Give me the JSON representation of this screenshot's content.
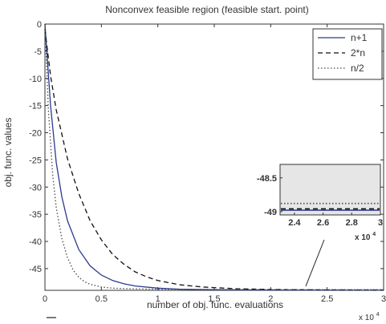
{
  "chart_data": {
    "type": "line",
    "title": "Nonconvex feasible region (feasible start. point)",
    "xlabel": "number of obj. func. evaluations",
    "ylabel": "obj. func. values",
    "xlim": [
      0,
      30000
    ],
    "ylim": [
      -49,
      0
    ],
    "x_multiplier_label": "x 10",
    "x_multiplier_exp": "4",
    "xticks": [
      0,
      0.5,
      1,
      1.5,
      2,
      2.5,
      3
    ],
    "xtick_labels": [
      "0",
      "0.5",
      "1",
      "1.5",
      "2",
      "2.5",
      "3"
    ],
    "yticks": [
      0,
      -5,
      -10,
      -15,
      -20,
      -25,
      -30,
      -35,
      -40,
      -45
    ],
    "ytick_labels": [
      "0",
      "-5",
      "-10",
      "-15",
      "-20",
      "-25",
      "-30",
      "-35",
      "-40",
      "-45"
    ],
    "grid": false,
    "legend_position": "top-right",
    "series": [
      {
        "name": "n+1",
        "color": "#2b3a8c",
        "dash": "solid",
        "x": [
          0,
          500,
          1000,
          1500,
          2000,
          3000,
          4000,
          5000,
          6000,
          7000,
          8000,
          10000,
          12000,
          15000,
          20000,
          25000,
          30000
        ],
        "y": [
          0,
          -15,
          -25.5,
          -31.8,
          -36.2,
          -41.5,
          -44.5,
          -46.2,
          -47.2,
          -47.8,
          -48.2,
          -48.6,
          -48.8,
          -48.9,
          -48.95,
          -48.97,
          -48.98
        ]
      },
      {
        "name": "2*n",
        "color": "#111111",
        "dash": "dashed",
        "x": [
          0,
          500,
          1000,
          2000,
          3000,
          4000,
          5000,
          6000,
          7000,
          8000,
          9000,
          10000,
          12000,
          14000,
          17000,
          20000,
          25000,
          30000
        ],
        "y": [
          -1,
          -9.5,
          -15.8,
          -24.8,
          -31.2,
          -36.2,
          -39.7,
          -42.4,
          -44.2,
          -45.6,
          -46.5,
          -47.2,
          -48.0,
          -48.4,
          -48.7,
          -48.85,
          -48.93,
          -48.96
        ]
      },
      {
        "name": "n/2",
        "color": "#4a4a4a",
        "dash": "dotted",
        "x": [
          0,
          300,
          700,
          1000,
          1500,
          2000,
          2500,
          3000,
          3500,
          4000,
          5000,
          6000,
          8000,
          10000,
          15000,
          20000,
          30000
        ],
        "y": [
          0,
          -15.5,
          -28,
          -33.8,
          -39.5,
          -43,
          -45.3,
          -46.6,
          -47.4,
          -47.9,
          -48.4,
          -48.6,
          -48.75,
          -48.8,
          -48.85,
          -48.87,
          -48.88
        ]
      }
    ],
    "inset": {
      "xlim": [
        23000,
        30000
      ],
      "ylim": [
        -49.05,
        -48.3
      ],
      "xticks": [
        2.4,
        2.6,
        2.8,
        3
      ],
      "xtick_labels": [
        "2.4",
        "2.6",
        "2.8",
        "3"
      ],
      "yticks": [
        -48.5,
        -49
      ],
      "ytick_labels": [
        "-48.5",
        "-49"
      ],
      "x_multiplier_label": "x 10",
      "x_multiplier_exp": "4",
      "background": "#e6e6e6",
      "series": [
        {
          "name": "n+1",
          "y": -48.98
        },
        {
          "name": "2*n",
          "y": -48.96
        },
        {
          "name": "n/2",
          "y": -48.88
        }
      ]
    }
  }
}
